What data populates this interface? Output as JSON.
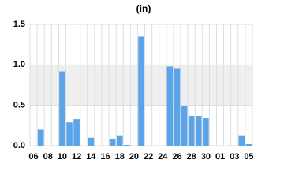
{
  "chart_data": {
    "type": "bar",
    "title": "(in)",
    "categories": [
      "06",
      null,
      "08",
      null,
      "10",
      null,
      "12",
      null,
      "14",
      null,
      "16",
      null,
      "18",
      null,
      "20",
      null,
      "22",
      null,
      "24",
      null,
      "26",
      null,
      "28",
      null,
      "30",
      null,
      "01",
      null,
      "03",
      null,
      "05"
    ],
    "values": [
      0,
      0.2,
      0,
      0,
      0.92,
      0.29,
      0.33,
      0,
      0.1,
      0,
      0,
      0.08,
      0.12,
      0.01,
      0,
      1.35,
      0,
      0,
      0,
      0.98,
      0.96,
      0.49,
      0.37,
      0.37,
      0.34,
      0,
      0,
      0,
      0,
      0.12,
      0.02
    ],
    "color": "#5ba4ea",
    "ylim": [
      0,
      1.5
    ],
    "yticks": [
      {
        "value": 0,
        "label": "0.0"
      },
      0.5,
      {
        "value": 1,
        "label": "1.0"
      },
      1.5
    ],
    "grid": true
  }
}
